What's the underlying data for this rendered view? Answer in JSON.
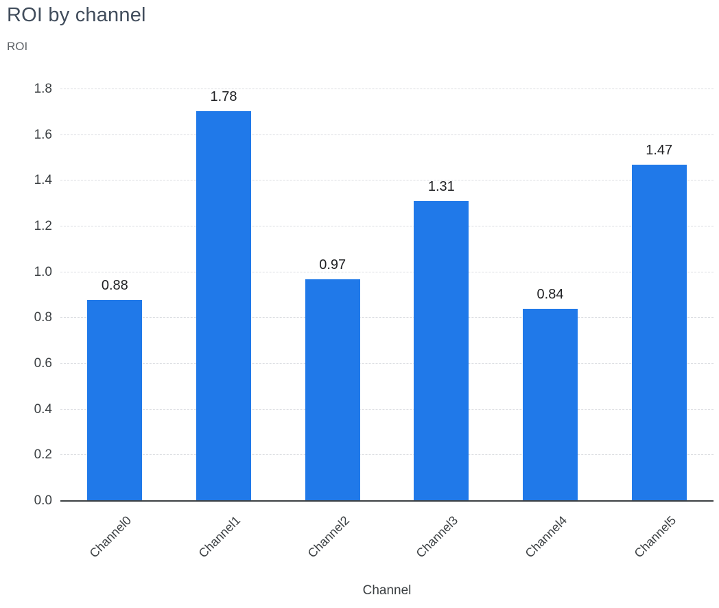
{
  "title": "ROI by channel",
  "chart_data": {
    "type": "bar",
    "categories": [
      "Channel0",
      "Channel1",
      "Channel2",
      "Channel3",
      "Channel4",
      "Channel5"
    ],
    "values": [
      0.88,
      1.78,
      0.97,
      1.31,
      0.84,
      1.47
    ],
    "title": "ROI by channel",
    "xlabel": "Channel",
    "ylabel": "ROI",
    "ylim": [
      0,
      1.8
    ],
    "ytick_step": 0.2,
    "bar_color": "#2079e9",
    "grid": "horizontal-dashed",
    "legend": "none",
    "value_labels": [
      "0.88",
      "1.78",
      "0.97",
      "1.31",
      "0.84",
      "1.47"
    ]
  }
}
